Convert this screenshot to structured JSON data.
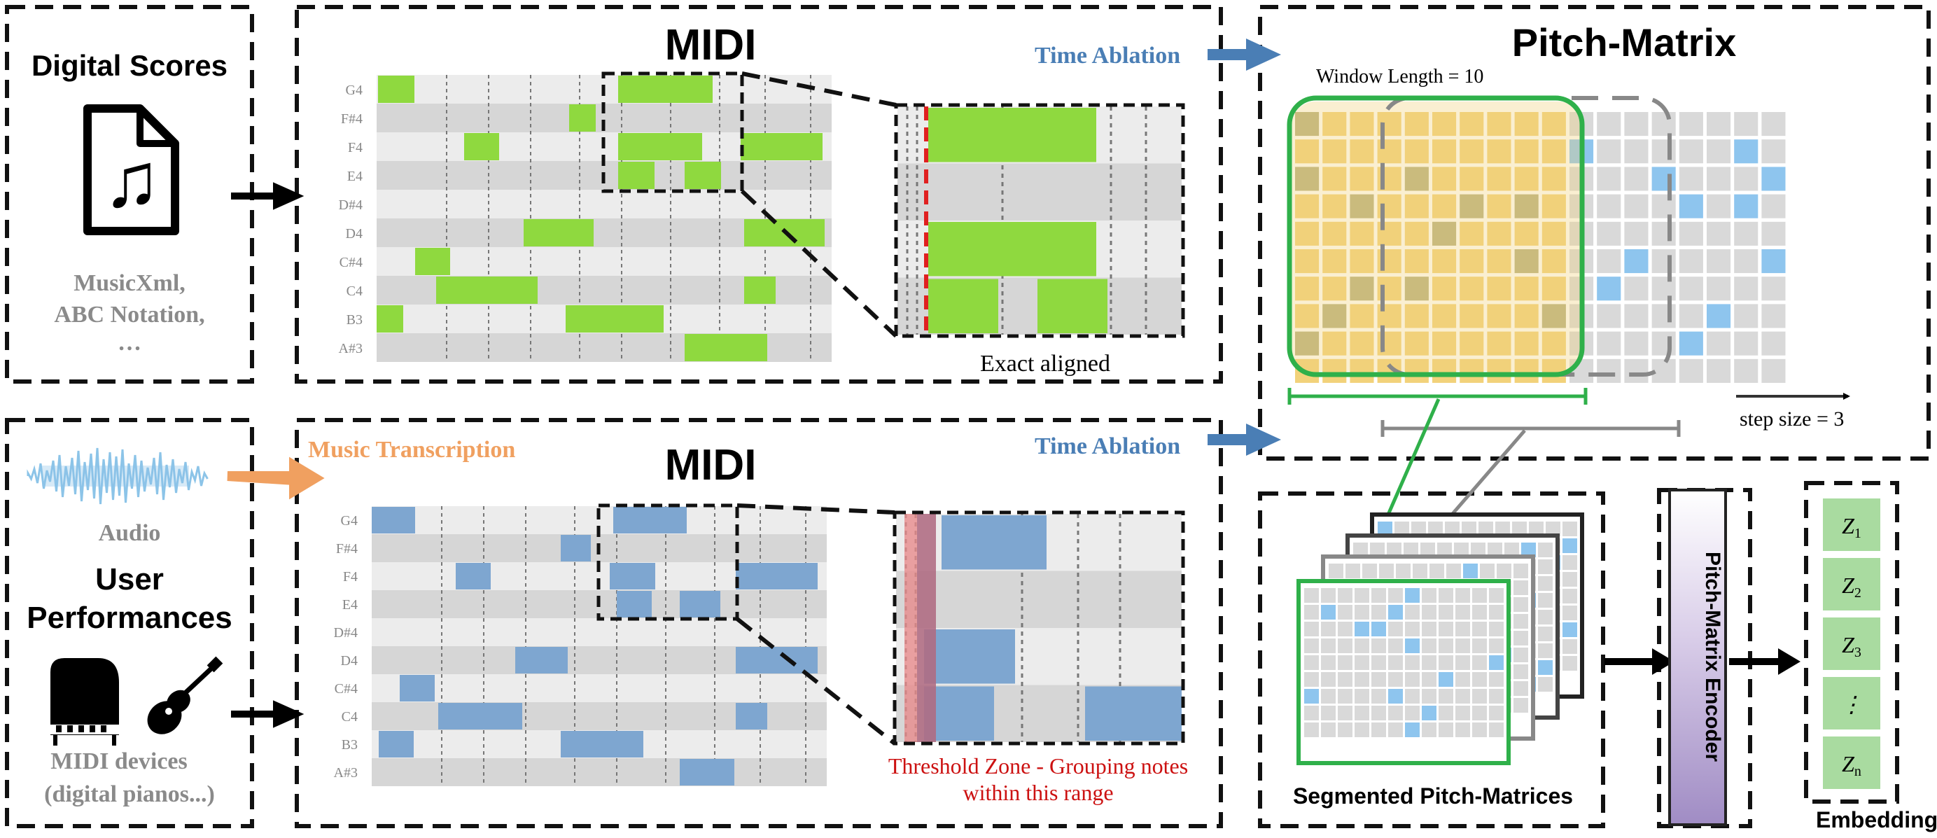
{
  "sources": {
    "digital_scores": {
      "title": "Digital Scores",
      "formats": [
        "MusicXml,",
        "ABC Notation,",
        "…"
      ]
    },
    "user_performances": {
      "audio_label": "Audio",
      "title_line1": "User",
      "title_line2": "Performances",
      "devices": [
        "MIDI devices",
        "(digital pianos...)"
      ]
    }
  },
  "midi_top": {
    "title": "MIDI",
    "pitches": [
      "G4",
      "F#4",
      "F4",
      "E4",
      "D#4",
      "D4",
      "C#4",
      "C4",
      "B3",
      "A#3"
    ],
    "note_color": "#8fd93f",
    "zoom_caption": "Exact aligned",
    "aligned_line_color": "#e02020"
  },
  "midi_bottom": {
    "title": "MIDI",
    "pitches": [
      "G4",
      "F#4",
      "F4",
      "E4",
      "D#4",
      "D4",
      "C#4",
      "C4",
      "B3",
      "A#3"
    ],
    "note_color": "#7ea6d0",
    "zoom_caption_lines": [
      "Threshold Zone - Grouping notes",
      "within this range"
    ],
    "threshold_color": "#e8898b"
  },
  "arrows": {
    "time_ablation_top": "Time Ablation",
    "time_ablation_bottom": "Time Ablation",
    "music_transcription": "Music Transcription",
    "ablation_color": "#4a7eb5",
    "transcription_color": "#f0a060"
  },
  "pitch_matrix": {
    "title": "Pitch-Matrix",
    "window_label": "Window Length = 10",
    "step_label": "step size = 3",
    "window_color": "#f2d27a",
    "window_border": "#2fb04a",
    "active_cell_color": "#8ec5ee"
  },
  "segmented": {
    "label": "Segmented Pitch-Matrices"
  },
  "encoder": {
    "label": "Pitch-Matrix Encoder",
    "color": "#a08cc4"
  },
  "embeddings": {
    "label": "Embeddings",
    "items": [
      {
        "sym": "Z",
        "sub": "1"
      },
      {
        "sym": "Z",
        "sub": "2"
      },
      {
        "sym": "Z",
        "sub": "3"
      },
      {
        "sym": "⋮",
        "sub": ""
      },
      {
        "sym": "Z",
        "sub": "n"
      }
    ],
    "color": "#a9dba0"
  }
}
